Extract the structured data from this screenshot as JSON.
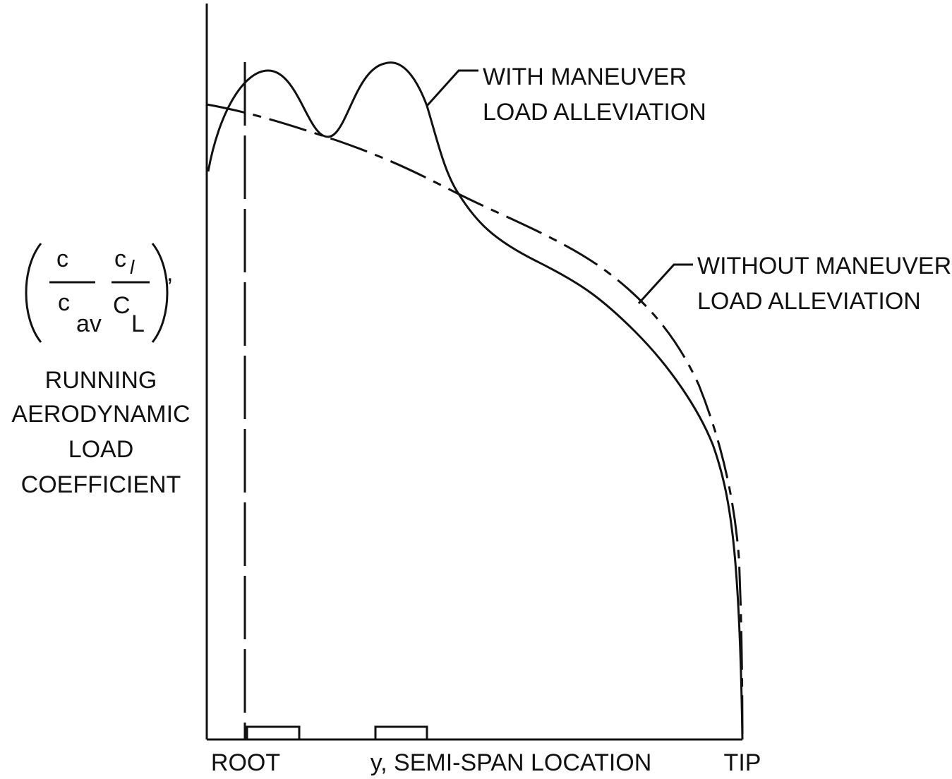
{
  "y_label": {
    "fraction": {
      "c1_num": "c",
      "c1_den": "c",
      "c1_den_sub": "av",
      "c2_num": "c",
      "c2_num_sub": "l",
      "c2_den": "C",
      "c2_den_sub": "L"
    },
    "lines": [
      "RUNNING",
      "AERODYNAMIC",
      "LOAD",
      "COEFFICIENT"
    ]
  },
  "annotations": {
    "with": [
      "WITH MANEUVER",
      "LOAD ALLEVIATION"
    ],
    "without": [
      "WITHOUT MANEUVER",
      "LOAD ALLEVIATION"
    ]
  },
  "x_labels": {
    "root": "ROOT",
    "axis": "y, SEMI-SPAN LOCATION",
    "tip": "TIP"
  }
}
